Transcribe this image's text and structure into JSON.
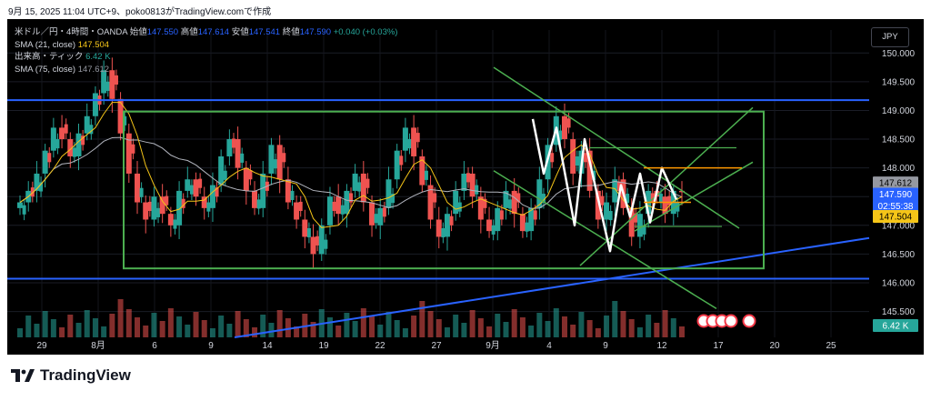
{
  "caption": "9月 15, 2025 11:04 UTC+9、poko0813がTradingView.comで作成",
  "legend": {
    "symbol": "米ドル／円・4時間・OANDA",
    "open_label": "始値",
    "open": "147.550",
    "high_label": "高値",
    "high": "147.614",
    "low_label": "安値",
    "low": "147.541",
    "close_label": "終値",
    "close": "147.590",
    "change": "+0.040 (+0.03%)",
    "sma21_label": "SMA (21, close)",
    "sma21_value": "147.504",
    "volume_label": "出来高・ティック",
    "volume_value": "6.42 K",
    "sma75_label": "SMA (75, close)",
    "sma75_value": "147.612"
  },
  "currency_button": "JPY",
  "brand": "TradingView",
  "colors": {
    "up": "#26a69a",
    "down": "#ef5350",
    "sma21": "#f5c518",
    "sma75": "#b2b5be",
    "blue_line": "#2962ff",
    "green_line": "#4caf50",
    "white_line": "#ffffff",
    "orange_line": "#ff9800"
  },
  "chart_data": {
    "type": "candlestick",
    "y_ticks": [
      "150.000",
      "149.500",
      "149.000",
      "148.500",
      "148.000",
      "147.500",
      "147.000",
      "146.500",
      "146.000",
      "145.500"
    ],
    "y_tick_values": [
      150.0,
      149.5,
      149.0,
      148.5,
      148.0,
      147.5,
      147.0,
      146.5,
      146.0,
      145.5
    ],
    "ylim": [
      145.05,
      150.4
    ],
    "x_labels": [
      {
        "text": "29",
        "slot": 38
      },
      {
        "text": "8月",
        "slot": 100
      },
      {
        "text": "6",
        "slot": 162
      },
      {
        "text": "9",
        "slot": 224
      },
      {
        "text": "14",
        "slot": 286
      },
      {
        "text": "19",
        "slot": 348
      },
      {
        "text": "22",
        "slot": 410
      },
      {
        "text": "27",
        "slot": 472
      },
      {
        "text": "9月",
        "slot": 534
      },
      {
        "text": "4",
        "slot": 596
      },
      {
        "text": "9",
        "slot": 658
      },
      {
        "text": "12",
        "slot": 720
      },
      {
        "text": "17",
        "slot": 782
      },
      {
        "text": "20",
        "slot": 844
      },
      {
        "text": "25",
        "slot": 906
      }
    ],
    "candle_closes_approx": [
      147.4,
      147.6,
      147.9,
      148.3,
      148.7,
      148.5,
      148.2,
      148.6,
      148.9,
      149.3,
      149.7,
      149.2,
      148.6,
      147.9,
      147.4,
      147.1,
      147.5,
      147.2,
      147.0,
      147.6,
      147.8,
      147.5,
      147.3,
      147.7,
      148.2,
      148.5,
      148.0,
      147.6,
      147.3,
      147.9,
      148.4,
      147.8,
      147.4,
      147.1,
      146.8,
      146.5,
      147.0,
      147.5,
      147.2,
      147.6,
      147.9,
      147.4,
      147.0,
      147.3,
      147.8,
      148.3,
      148.7,
      148.2,
      147.7,
      147.1,
      146.8,
      147.2,
      147.6,
      147.9,
      147.5,
      147.1,
      146.9,
      147.3,
      147.6,
      147.2,
      146.9,
      147.3,
      147.8,
      148.4,
      148.9,
      148.5,
      147.9,
      148.3,
      147.6,
      147.1,
      147.4,
      147.8,
      147.3,
      146.8,
      147.2,
      147.6,
      147.5,
      147.2,
      147.6,
      147.59
    ],
    "price_labels": {
      "sma75": "147.612",
      "close": "147.590",
      "countdown": "02:55:38",
      "sma21": "147.504",
      "volume": "6.42 K"
    }
  }
}
